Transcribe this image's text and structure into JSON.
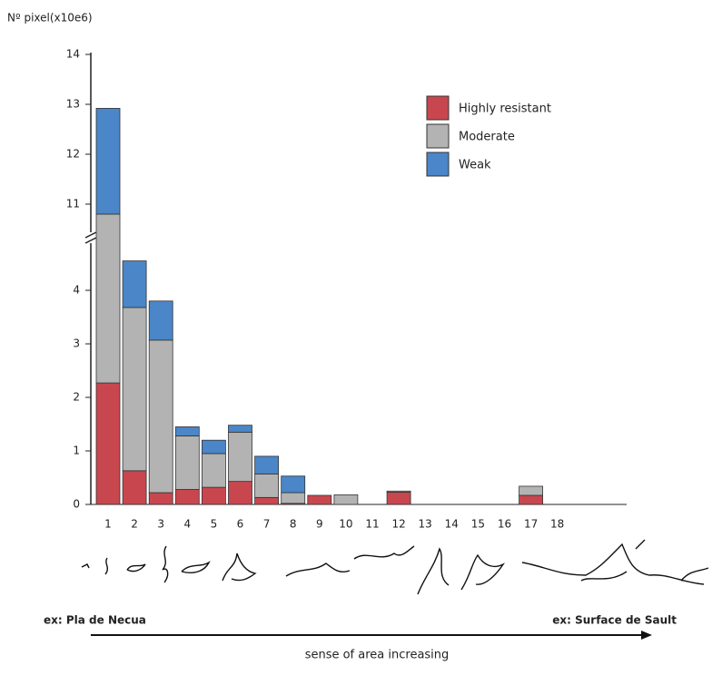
{
  "chart_data": {
    "type": "stacked_bar",
    "y_label": "Nº pixel(x10e6)",
    "categories": [
      "1",
      "2",
      "3",
      "4",
      "5",
      "6",
      "7",
      "8",
      "9",
      "10",
      "11",
      "12",
      "13",
      "14",
      "15",
      "16",
      "17",
      "18"
    ],
    "series": [
      {
        "name": "Highly resistant",
        "color": "#c8474f",
        "values": [
          2.27,
          0.63,
          0.22,
          0.28,
          0.32,
          0.43,
          0.13,
          0.02,
          0.17,
          0,
          0,
          0.23,
          0,
          0,
          0,
          0,
          0.17,
          0
        ]
      },
      {
        "name": "Moderate",
        "color": "#b3b3b3",
        "values": [
          8.53,
          3.05,
          2.85,
          1.0,
          0.63,
          0.92,
          0.44,
          0.2,
          0,
          0.18,
          0,
          0.02,
          0,
          0,
          0,
          0,
          0.17,
          0
        ]
      },
      {
        "name": "Weak",
        "color": "#4a86c8",
        "values": [
          2.12,
          0.87,
          0.73,
          0.17,
          0.25,
          0.13,
          0.33,
          0.31,
          0,
          0,
          0,
          0,
          0,
          0,
          0,
          0,
          0,
          0
        ]
      }
    ],
    "ylim": [
      0,
      14
    ],
    "axis_break": [
      5,
      10.3
    ],
    "yticks": [
      0,
      1,
      2,
      3,
      4,
      11,
      12,
      13,
      14
    ],
    "legend": "upper right",
    "annotations": {
      "left": "ex: Pla de Necua",
      "right": "ex: Surface de Sault",
      "arrow": "sense of area increasing"
    }
  }
}
